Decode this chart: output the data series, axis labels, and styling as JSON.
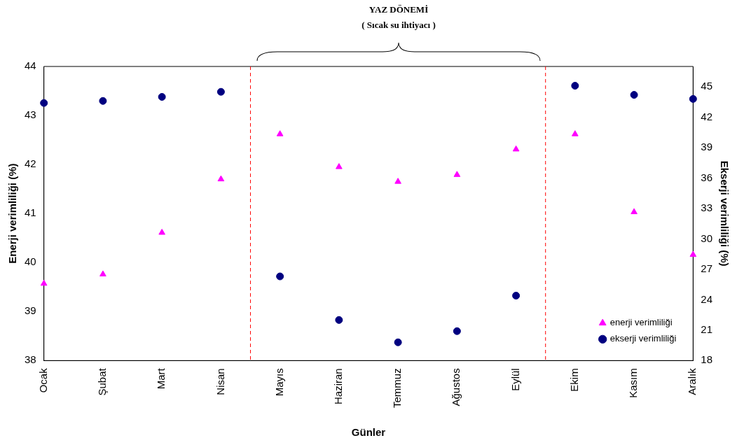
{
  "chart_data": {
    "type": "scatter",
    "title": "YAZ DÖNEMİ",
    "subtitle": "( Sıcak su ihtiyacı )",
    "xlabel": "Günler",
    "ylabel": "Enerji verimliliği (%)",
    "y2label": "Ekserji verimliliği (%)",
    "categories": [
      "Ocak",
      "Şubat",
      "Mart",
      "Nisan",
      "Mayıs",
      "Haziran",
      "Temmuz",
      "Ağustos",
      "Eylül",
      "Ekim",
      "Kasım",
      "Aralık"
    ],
    "series": [
      {
        "name": "enerji verimliliği",
        "color": "#ff00ff",
        "marker": "triangle",
        "values": [
          39.57,
          39.76,
          40.61,
          41.7,
          42.62,
          41.95,
          41.65,
          41.79,
          42.31,
          42.62,
          41.03,
          40.16
        ]
      },
      {
        "name": "ekserji verimliliği",
        "color": "#000080",
        "marker": "circle",
        "axis": "y2",
        "values": [
          43.4,
          43.6,
          44.0,
          44.5,
          26.3,
          22.0,
          19.8,
          20.9,
          24.4,
          45.1,
          44.2,
          43.8
        ]
      }
    ],
    "ylim": [
      38,
      44
    ],
    "yticks": [
      38,
      39,
      40,
      41,
      42,
      43,
      44
    ],
    "y2lim": [
      18,
      47
    ],
    "y2ticks": [
      18,
      21,
      24,
      27,
      30,
      33,
      36,
      39,
      42,
      45
    ],
    "grid": false,
    "legend": "bottom right"
  }
}
